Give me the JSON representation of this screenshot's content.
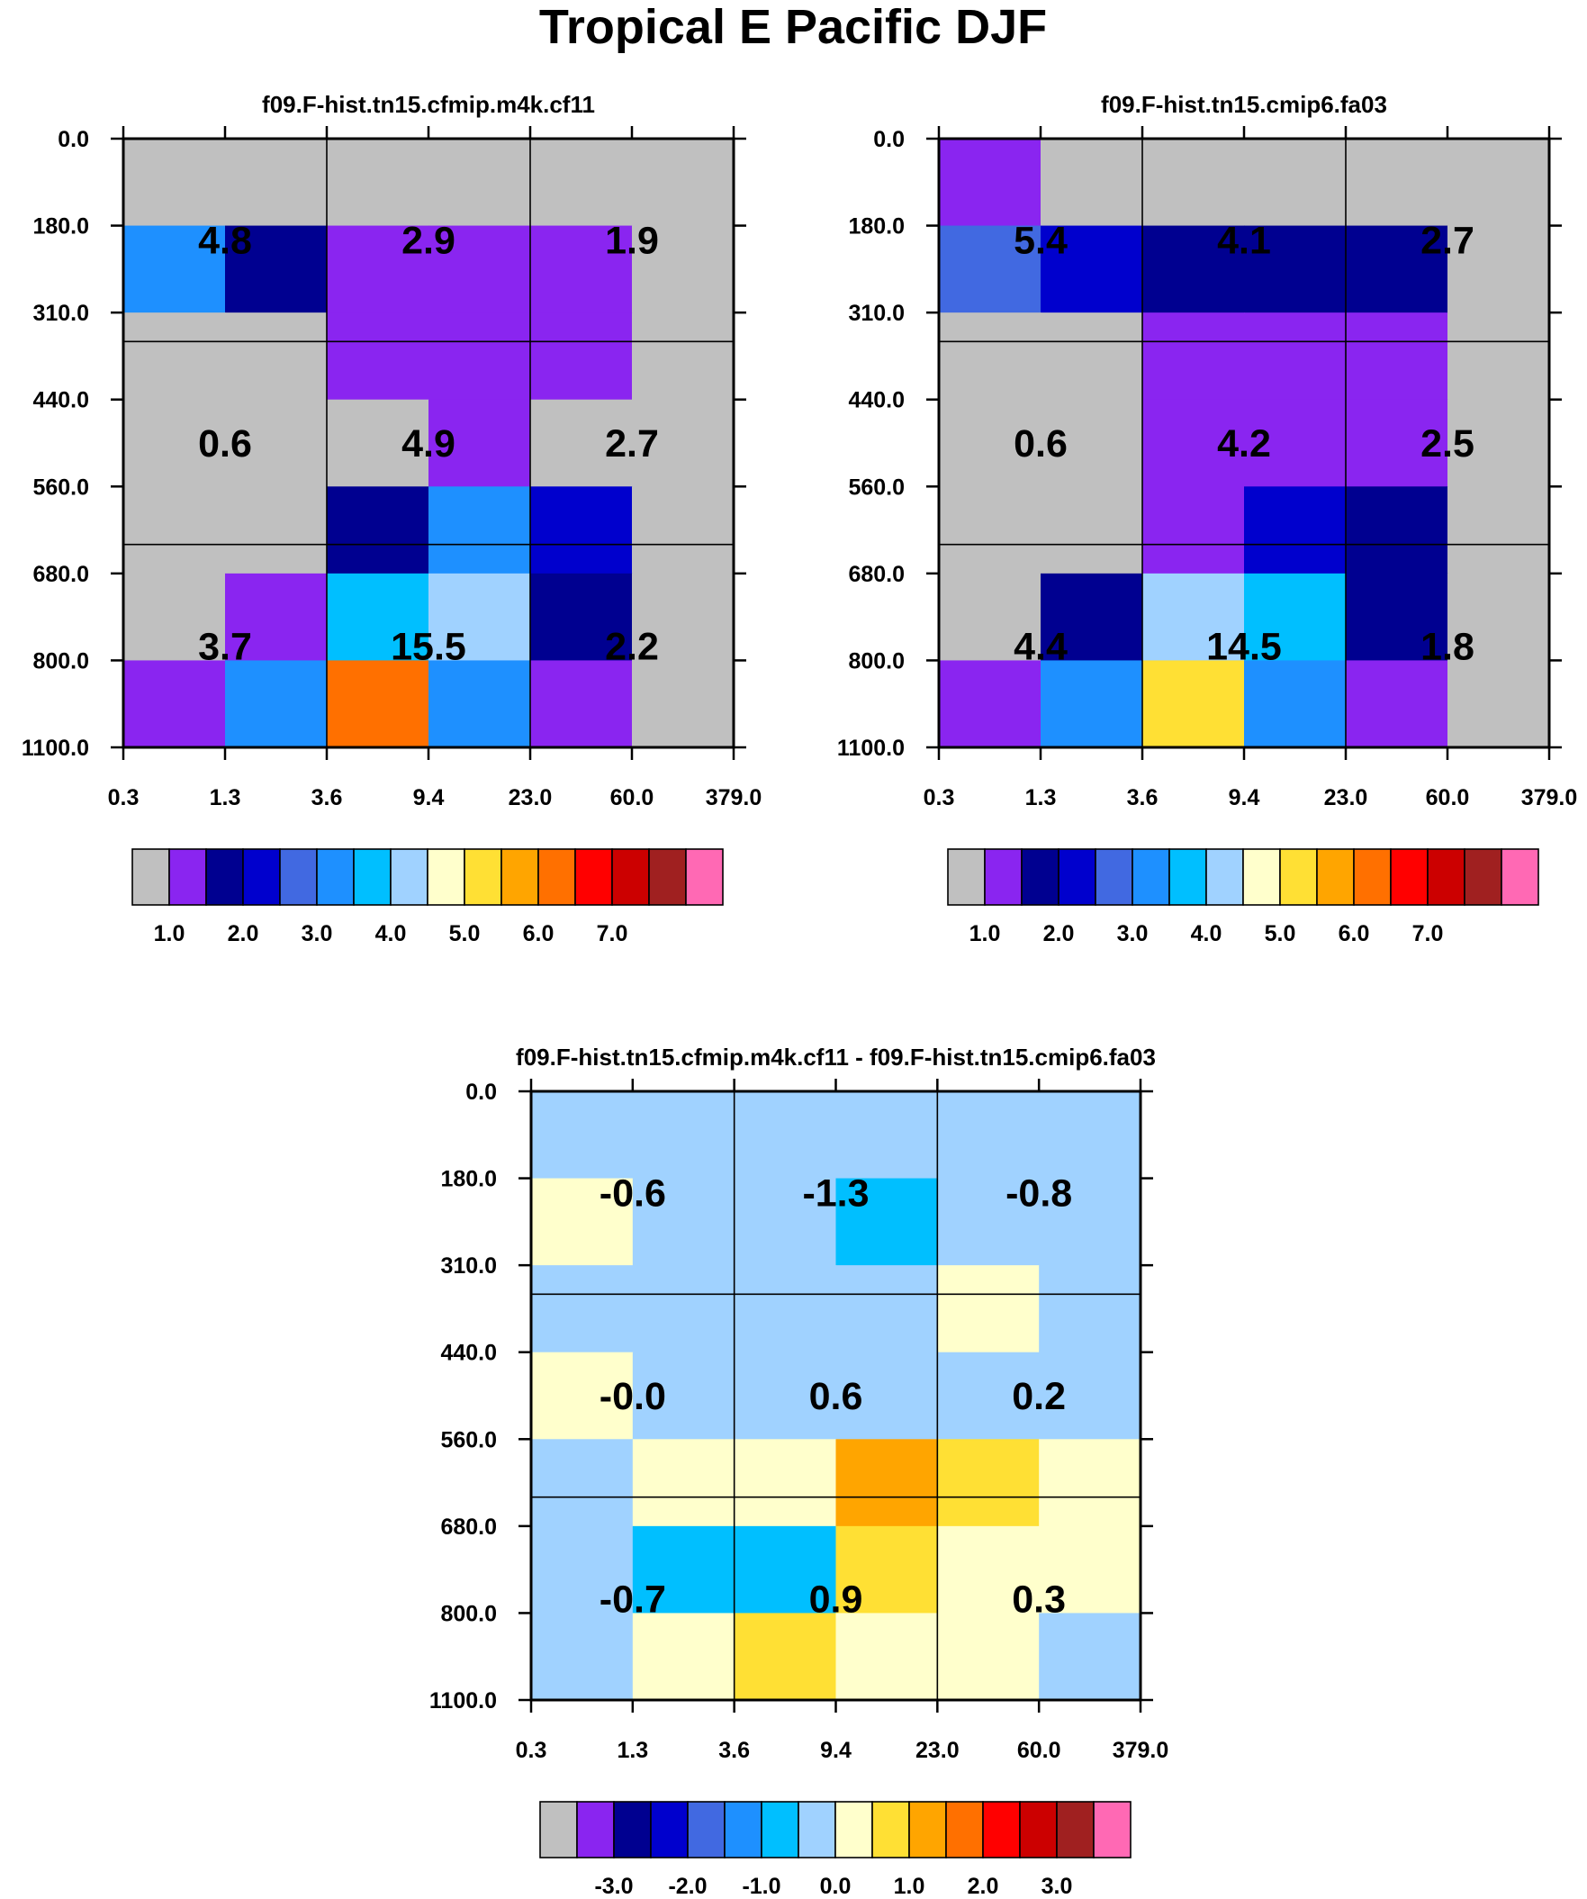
{
  "figure_title": "Tropical E Pacific DJF",
  "colors": {
    "missing": "#c0c0c0",
    "palette": [
      "#c0c0c0",
      "#8a25f0",
      "#000090",
      "#0000cd",
      "#4169e1",
      "#1e90ff",
      "#00bfff",
      "#a0d2ff",
      "#ffffcc",
      "#ffe034",
      "#ffa500",
      "#ff7000",
      "#ff0000",
      "#cc0000",
      "#a02020",
      "#ff69b4"
    ]
  },
  "chart_data": [
    {
      "type": "heatmap",
      "id": "panel1",
      "title": "f09.F-hist.tn15.cfmip.m4k.cf11",
      "x_tick_labels": [
        "0.3",
        "1.3",
        "3.6",
        "9.4",
        "23.0",
        "60.0",
        "379.0"
      ],
      "y_tick_labels": [
        "0.0",
        "180.0",
        "310.0",
        "440.0",
        "560.0",
        "680.0",
        "800.0",
        "1100.0"
      ],
      "cell_color_index": [
        [
          0,
          0,
          0,
          0,
          0,
          0
        ],
        [
          5,
          2,
          1,
          1,
          1,
          0
        ],
        [
          0,
          0,
          1,
          1,
          1,
          0
        ],
        [
          0,
          0,
          0,
          1,
          0,
          0
        ],
        [
          0,
          0,
          2,
          5,
          3,
          0
        ],
        [
          0,
          1,
          6,
          7,
          2,
          0
        ],
        [
          1,
          5,
          11,
          5,
          1,
          0
        ]
      ],
      "labels": [
        [
          "4.8",
          "2.9",
          "1.9"
        ],
        [
          "0.6",
          "4.9",
          "2.7"
        ],
        [
          "3.7",
          "15.5",
          "2.2"
        ]
      ],
      "colorbar_ticks": [
        "1.0",
        "2.0",
        "3.0",
        "4.0",
        "5.0",
        "6.0",
        "7.0"
      ],
      "colorbar_tick_boundaries": [
        1,
        3,
        5,
        7,
        9,
        11,
        13
      ]
    },
    {
      "type": "heatmap",
      "id": "panel2",
      "title": "f09.F-hist.tn15.cmip6.fa03",
      "x_tick_labels": [
        "0.3",
        "1.3",
        "3.6",
        "9.4",
        "23.0",
        "60.0",
        "379.0"
      ],
      "y_tick_labels": [
        "0.0",
        "180.0",
        "310.0",
        "440.0",
        "560.0",
        "680.0",
        "800.0",
        "1100.0"
      ],
      "cell_color_index": [
        [
          1,
          0,
          0,
          0,
          0,
          0
        ],
        [
          4,
          3,
          2,
          2,
          2,
          0
        ],
        [
          0,
          0,
          1,
          1,
          1,
          0
        ],
        [
          0,
          0,
          1,
          1,
          1,
          0
        ],
        [
          0,
          0,
          1,
          3,
          2,
          0
        ],
        [
          0,
          2,
          7,
          6,
          2,
          0
        ],
        [
          1,
          5,
          9,
          5,
          1,
          0
        ]
      ],
      "labels": [
        [
          "5.4",
          "4.1",
          "2.7"
        ],
        [
          "0.6",
          "4.2",
          "2.5"
        ],
        [
          "4.4",
          "14.5",
          "1.8"
        ]
      ],
      "colorbar_ticks": [
        "1.0",
        "2.0",
        "3.0",
        "4.0",
        "5.0",
        "6.0",
        "7.0"
      ],
      "colorbar_tick_boundaries": [
        1,
        3,
        5,
        7,
        9,
        11,
        13
      ]
    },
    {
      "type": "heatmap",
      "id": "panel3",
      "title": "f09.F-hist.tn15.cfmip.m4k.cf11 - f09.F-hist.tn15.cmip6.fa03",
      "x_tick_labels": [
        "0.3",
        "1.3",
        "3.6",
        "9.4",
        "23.0",
        "60.0",
        "379.0"
      ],
      "y_tick_labels": [
        "0.0",
        "180.0",
        "310.0",
        "440.0",
        "560.0",
        "680.0",
        "800.0",
        "1100.0"
      ],
      "cell_color_index": [
        [
          7,
          7,
          7,
          7,
          7,
          7
        ],
        [
          8,
          7,
          7,
          6,
          7,
          7
        ],
        [
          7,
          7,
          7,
          7,
          8,
          7
        ],
        [
          8,
          7,
          7,
          7,
          7,
          7
        ],
        [
          7,
          8,
          8,
          10,
          9,
          8
        ],
        [
          7,
          6,
          6,
          9,
          8,
          8
        ],
        [
          7,
          8,
          9,
          8,
          8,
          7
        ]
      ],
      "labels": [
        [
          "-0.6",
          "-1.3",
          "-0.8"
        ],
        [
          "-0.0",
          "0.6",
          "0.2"
        ],
        [
          "-0.7",
          "0.9",
          "0.3"
        ]
      ],
      "colorbar_ticks": [
        "-3.0",
        "-2.0",
        "-1.0",
        "0.0",
        "1.0",
        "2.0",
        "3.0"
      ],
      "colorbar_tick_boundaries": [
        2,
        4,
        6,
        8,
        10,
        12,
        14
      ]
    }
  ]
}
